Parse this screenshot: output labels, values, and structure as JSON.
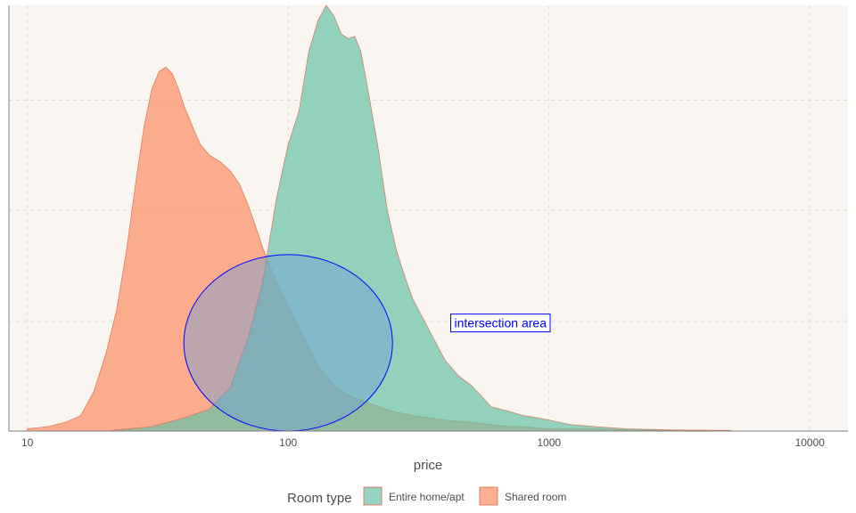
{
  "chart_data": {
    "type": "area",
    "title": "",
    "xlabel": "price",
    "ylabel": "",
    "x_scale": "log10",
    "xlim": [
      8.5,
      14000
    ],
    "ylim": [
      0,
      1.93
    ],
    "x_ticks": [
      10,
      100,
      1000,
      10000
    ],
    "x_tick_labels": [
      "10",
      "100",
      "1000",
      "10000"
    ],
    "y_gridlines": [
      0.5,
      1.0,
      1.5
    ],
    "grid": "dashed",
    "background_color": "#f9f6f2",
    "legend": {
      "title": "Room type",
      "placement": "bottom",
      "entries": [
        "Entire home/apt",
        "Shared room"
      ]
    },
    "series": [
      {
        "name": "Shared room",
        "color": "#fc8d62",
        "x": [
          10,
          12,
          14,
          16,
          18,
          20,
          22,
          24,
          26,
          28,
          30,
          32,
          34,
          36,
          38,
          40,
          43,
          46,
          50,
          55,
          60,
          65,
          70,
          75,
          80,
          90,
          100,
          110,
          120,
          130,
          140,
          150,
          160,
          180,
          200,
          250,
          300,
          350,
          400,
          500,
          600,
          700,
          800,
          1000,
          1200,
          1500,
          2000,
          3000,
          5000
        ],
        "y": [
          0.01,
          0.02,
          0.04,
          0.07,
          0.18,
          0.35,
          0.55,
          0.82,
          1.12,
          1.38,
          1.55,
          1.63,
          1.65,
          1.62,
          1.55,
          1.47,
          1.38,
          1.3,
          1.25,
          1.22,
          1.18,
          1.12,
          1.03,
          0.93,
          0.83,
          0.68,
          0.57,
          0.47,
          0.38,
          0.3,
          0.25,
          0.21,
          0.18,
          0.15,
          0.13,
          0.09,
          0.07,
          0.06,
          0.05,
          0.04,
          0.03,
          0.02,
          0.02,
          0.01,
          0.01,
          0.01,
          0.005,
          0.004,
          0.002
        ]
      },
      {
        "name": "Entire home/apt",
        "color": "#66c2a5",
        "x": [
          20,
          30,
          40,
          50,
          60,
          70,
          80,
          90,
          100,
          110,
          120,
          130,
          140,
          150,
          160,
          170,
          180,
          190,
          200,
          220,
          240,
          260,
          280,
          300,
          350,
          400,
          450,
          500,
          550,
          600,
          700,
          800,
          900,
          1000,
          1200,
          1500,
          2000,
          3000,
          5000
        ],
        "y": [
          0.0,
          0.02,
          0.06,
          0.1,
          0.2,
          0.42,
          0.68,
          1.05,
          1.3,
          1.45,
          1.72,
          1.86,
          1.93,
          1.88,
          1.8,
          1.78,
          1.79,
          1.72,
          1.58,
          1.3,
          1.0,
          0.82,
          0.7,
          0.6,
          0.45,
          0.32,
          0.25,
          0.21,
          0.16,
          0.11,
          0.09,
          0.07,
          0.06,
          0.05,
          0.03,
          0.02,
          0.01,
          0.005,
          0.003
        ]
      }
    ],
    "annotations": [
      {
        "type": "ellipse",
        "label": "",
        "stroke": "#0000ff",
        "center_x": 100,
        "center_y": 0.4,
        "rx_log10": 0.4,
        "ry": 0.4
      },
      {
        "type": "label",
        "text": "intersection area",
        "x": 420,
        "y": 0.49,
        "color": "#0000ff"
      }
    ]
  }
}
